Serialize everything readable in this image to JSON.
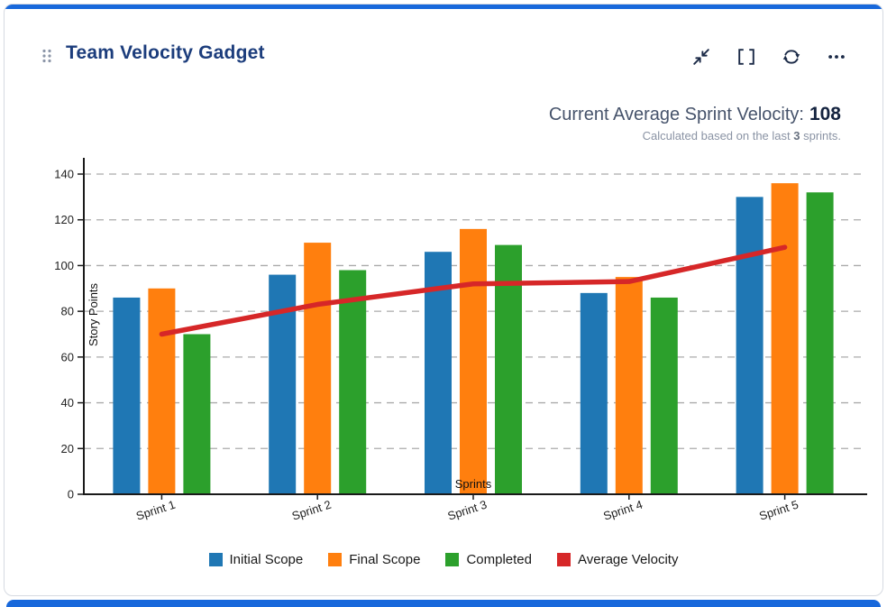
{
  "card": {
    "title": "Team Velocity Gadget",
    "accent_color": "#1868DB",
    "drag_handle_icon": "grip-dots",
    "toolbar_icons": [
      "collapse-diagonal",
      "fullscreen-brackets",
      "refresh",
      "more-ellipsis"
    ],
    "stat": {
      "label": "Current Average Sprint Velocity:",
      "value": "108",
      "subtitle_prefix": "Calculated based on the last ",
      "subtitle_bold": "3",
      "subtitle_suffix": " sprints."
    }
  },
  "chart_data": {
    "type": "bar",
    "categories": [
      "Sprint 1",
      "Sprint 2",
      "Sprint 3",
      "Sprint 4",
      "Sprint 5"
    ],
    "series": [
      {
        "name": "Initial Scope",
        "color": "#1F77B4",
        "values": [
          86,
          96,
          106,
          88,
          130
        ]
      },
      {
        "name": "Final Scope",
        "color": "#FF7F0E",
        "values": [
          90,
          110,
          116,
          95,
          136
        ]
      },
      {
        "name": "Completed",
        "color": "#2CA02C",
        "values": [
          70,
          98,
          109,
          86,
          132
        ]
      }
    ],
    "line_series": {
      "name": "Average Velocity",
      "color": "#D62728",
      "values": [
        70,
        83,
        92,
        93,
        108
      ]
    },
    "xlabel": "Sprints",
    "ylabel": "Story Points",
    "ylim": [
      0,
      140
    ],
    "ytick_step": 20,
    "grid": "horizontal-dashed",
    "legend_position": "bottom"
  }
}
